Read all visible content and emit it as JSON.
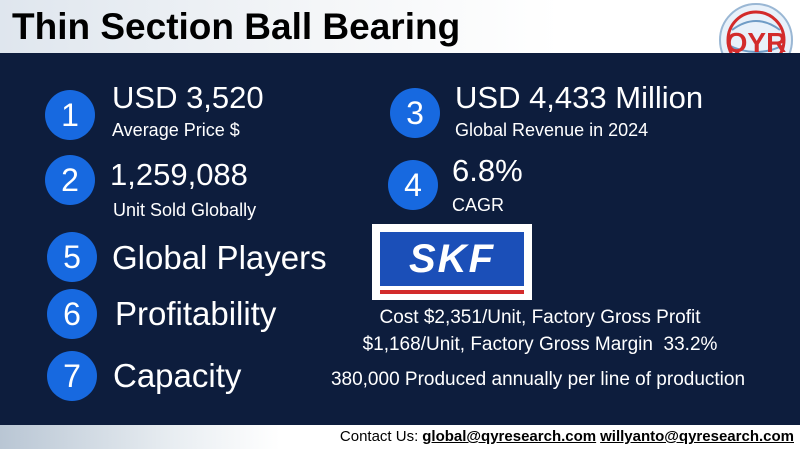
{
  "header": {
    "title": "Thin Section Ball Bearing",
    "logo": "QYR"
  },
  "metrics": [
    {
      "number": "1",
      "value": "USD 3,520",
      "label": "Average Price $"
    },
    {
      "number": "2",
      "value": "1,259,088",
      "label": "Unit Sold Globally"
    },
    {
      "number": "3",
      "value": "USD 4,433 Million",
      "label": "Global Revenue in 2024"
    },
    {
      "number": "4",
      "value": "6.8%",
      "label": "CAGR"
    }
  ],
  "sections": [
    {
      "number": "5",
      "title": "Global Players",
      "logo": "SKF"
    },
    {
      "number": "6",
      "title": "Profitability",
      "lines": [
        "Cost $2,351/Unit, Factory Gross Profit",
        "$1,168/Unit, Factory Gross Margin  33.2%"
      ]
    },
    {
      "number": "7",
      "title": "Capacity",
      "lines": [
        "380,000 Produced annually per line of production"
      ]
    }
  ],
  "footer": {
    "label": "Contact Us:",
    "emails": [
      "global@qyresearch.com",
      "willyanto@qyresearch.com"
    ]
  }
}
